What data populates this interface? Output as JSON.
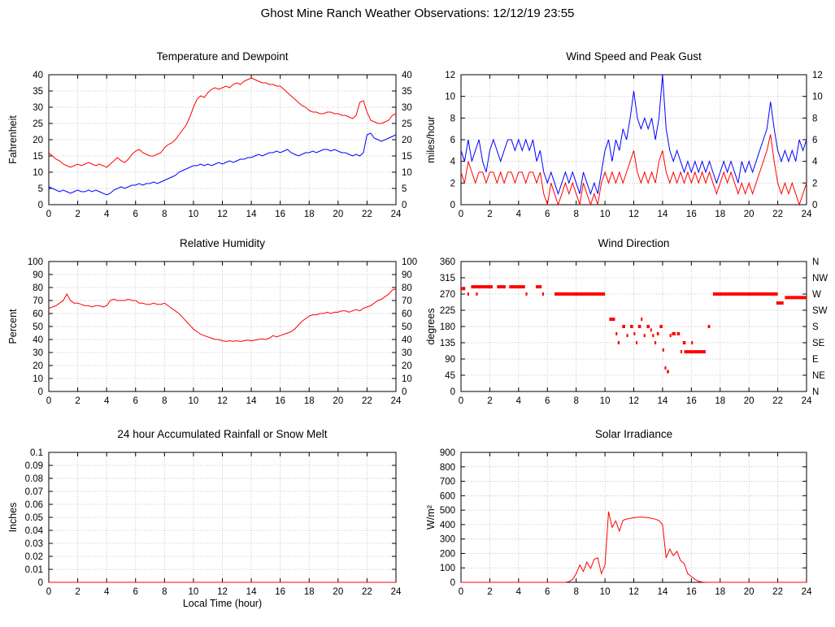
{
  "page_title": "Ghost Mine Ranch Weather Observations: 12/12/19 23:55",
  "chart_data": [
    {
      "type": "line",
      "title": "Temperature and Dewpoint",
      "ylabel": "Fahrenheit",
      "ylim": [
        0,
        40
      ],
      "ytick": 5,
      "xlim": [
        0,
        24
      ],
      "xtick": 2,
      "right_ticks": true,
      "grid": true,
      "series": [
        {
          "name": "Temperature",
          "color": "#ff0000",
          "x_step": 0.25,
          "values": [
            16,
            15,
            14,
            13.5,
            12.5,
            12,
            11.5,
            12,
            12.5,
            12,
            12.5,
            13,
            12.5,
            12,
            12.5,
            12,
            11.5,
            12.5,
            13.5,
            14.5,
            13.5,
            13,
            14,
            15.5,
            16.5,
            17,
            16,
            15.5,
            15,
            15,
            15.5,
            16,
            17.5,
            18.5,
            19,
            20,
            21.5,
            23,
            24.5,
            27,
            30,
            32.5,
            33.5,
            33,
            34.5,
            35.5,
            36,
            35.5,
            36,
            36.5,
            36,
            37,
            37.5,
            37,
            38,
            38.5,
            39,
            38.5,
            38,
            37.5,
            37.5,
            37,
            37,
            36.5,
            36.5,
            35.5,
            34.5,
            33.5,
            32.5,
            31.5,
            30.5,
            30,
            29,
            28.5,
            28.5,
            28,
            28,
            28.5,
            28.5,
            28,
            28,
            27.5,
            27.5,
            27,
            26.5,
            27.5,
            31.5,
            32,
            28.5,
            26,
            25.5,
            25,
            25,
            25.5,
            26,
            27.5,
            28
          ]
        },
        {
          "name": "Dewpoint",
          "color": "#0000ff",
          "x_step": 0.25,
          "values": [
            5.5,
            5,
            4.5,
            4,
            4.5,
            4,
            3.5,
            4,
            4.5,
            4,
            4,
            4.5,
            4,
            4.5,
            4,
            3.5,
            3,
            3.5,
            4.5,
            5,
            5.5,
            5,
            5.5,
            6,
            6,
            6.5,
            6,
            6.5,
            6.5,
            7,
            6.5,
            7,
            7.5,
            8,
            8.5,
            9,
            10,
            10.5,
            11,
            11.5,
            12,
            12,
            12.5,
            12,
            12.5,
            12,
            12.5,
            13,
            12.5,
            13,
            13.5,
            13,
            13.5,
            14,
            14,
            14.5,
            14.5,
            15,
            15.5,
            15,
            15.5,
            16,
            16,
            16.5,
            16,
            16.5,
            17,
            16,
            15.5,
            15,
            15.5,
            16,
            16,
            16.5,
            16,
            16.5,
            17,
            17,
            16.5,
            17,
            16.5,
            16,
            16,
            15.5,
            15,
            15.5,
            15,
            16,
            21.5,
            22,
            20.5,
            20,
            19.5,
            20,
            20.5,
            21,
            21.5
          ]
        }
      ]
    },
    {
      "type": "line",
      "title": "Wind Speed and Peak Gust",
      "ylabel": "miles/hour",
      "ylim": [
        0,
        12
      ],
      "ytick": 2,
      "xlim": [
        0,
        24
      ],
      "xtick": 2,
      "right_ticks": true,
      "grid": true,
      "series": [
        {
          "name": "Wind Speed",
          "color": "#ff0000",
          "x_step": 0.25,
          "values": [
            3,
            2,
            4,
            3,
            2,
            3,
            3,
            2,
            3,
            3,
            2,
            3,
            2,
            3,
            3,
            2,
            3,
            3,
            2,
            3,
            3,
            2,
            3,
            1,
            0,
            2,
            1,
            0,
            1,
            2,
            1,
            2,
            1,
            0,
            2,
            1,
            0,
            1,
            0,
            2,
            3,
            2,
            3,
            2,
            3,
            2,
            3,
            4,
            5,
            3,
            2,
            3,
            2,
            3,
            2,
            4,
            5,
            3,
            2,
            3,
            2,
            3,
            2,
            3,
            2,
            3,
            2,
            3,
            2,
            3,
            2,
            1,
            2,
            3,
            2,
            3,
            2,
            1,
            2,
            1,
            2,
            1,
            2,
            3,
            4,
            5,
            6.5,
            4,
            2,
            1,
            2,
            1,
            2,
            1,
            0,
            1,
            2
          ]
        },
        {
          "name": "Peak Gust",
          "color": "#0000ff",
          "x_step": 0.25,
          "values": [
            5,
            4,
            6,
            4,
            5,
            6,
            4,
            3,
            5,
            6,
            5,
            4,
            5,
            6,
            6,
            5,
            6,
            5,
            6,
            5,
            6,
            4,
            5,
            3,
            2,
            3,
            2,
            1,
            2,
            3,
            2,
            3,
            2,
            1,
            3,
            2,
            1,
            2,
            1,
            3,
            5,
            6,
            4,
            6,
            5,
            7,
            6,
            8,
            10.5,
            8,
            7,
            8,
            7,
            8,
            6,
            8,
            12,
            7,
            5,
            4,
            5,
            4,
            3,
            4,
            3,
            4,
            3,
            4,
            3,
            4,
            3,
            2,
            3,
            4,
            3,
            4,
            3,
            2,
            4,
            3,
            4,
            3,
            4,
            5,
            6,
            7,
            9.5,
            7,
            5,
            4,
            5,
            4,
            5,
            4,
            6,
            5,
            6
          ]
        }
      ]
    },
    {
      "type": "line",
      "title": "Relative Humidity",
      "ylabel": "Percent",
      "ylim": [
        0,
        100
      ],
      "ytick": 10,
      "xlim": [
        0,
        24
      ],
      "xtick": 2,
      "right_ticks": true,
      "grid": true,
      "series": [
        {
          "name": "Relative Humidity",
          "color": "#ff0000",
          "x_step": 0.25,
          "values": [
            64,
            65,
            66,
            68,
            70,
            75,
            70,
            68,
            68,
            67,
            66,
            66,
            65,
            66,
            66,
            65,
            66,
            70,
            71,
            70,
            70,
            70,
            71,
            70,
            70,
            68,
            68,
            67,
            67,
            68,
            67,
            67,
            68,
            66,
            64,
            62,
            60,
            57,
            54,
            51,
            48,
            46,
            44,
            43,
            42,
            41,
            40,
            40,
            39,
            38.5,
            39,
            38.5,
            39,
            38.5,
            39,
            39.5,
            39,
            39.5,
            40,
            40.5,
            40,
            41,
            43,
            42,
            43,
            44,
            45,
            46,
            48,
            51,
            54,
            56,
            58,
            59,
            59,
            60,
            60,
            61,
            60,
            61,
            61,
            62,
            62,
            61,
            62,
            63,
            62,
            64,
            65,
            66,
            68,
            70,
            71,
            73,
            75,
            78,
            79
          ]
        }
      ]
    },
    {
      "type": "scatter",
      "title": "Wind Direction",
      "ylabel": "degrees",
      "ylim": [
        0,
        360
      ],
      "ytick": 45,
      "xlim": [
        0,
        24
      ],
      "xtick": 2,
      "right_labels": [
        "N",
        "NW",
        "W",
        "SW",
        "S",
        "SE",
        "E",
        "NE",
        "N"
      ],
      "grid": true,
      "color": "#ff0000",
      "segments": [
        [
          0.0,
          0.3,
          285
        ],
        [
          0.45,
          0.55,
          270
        ],
        [
          0.7,
          2.2,
          290
        ],
        [
          1.05,
          1.15,
          270
        ],
        [
          2.5,
          3.1,
          290
        ],
        [
          3.35,
          4.45,
          290
        ],
        [
          4.5,
          4.6,
          270
        ],
        [
          5.2,
          5.6,
          290
        ],
        [
          5.65,
          5.75,
          270
        ],
        [
          6.5,
          10.0,
          270
        ],
        [
          10.3,
          10.7,
          200
        ],
        [
          10.75,
          10.85,
          160
        ],
        [
          10.9,
          11.0,
          135
        ],
        [
          11.2,
          11.4,
          180
        ],
        [
          11.5,
          11.6,
          155
        ],
        [
          11.75,
          11.95,
          180
        ],
        [
          12.0,
          12.1,
          160
        ],
        [
          12.15,
          12.25,
          135
        ],
        [
          12.3,
          12.5,
          180
        ],
        [
          12.5,
          12.6,
          200
        ],
        [
          12.7,
          12.8,
          155
        ],
        [
          12.9,
          13.1,
          180
        ],
        [
          13.15,
          13.25,
          170
        ],
        [
          13.3,
          13.4,
          155
        ],
        [
          13.45,
          13.55,
          135
        ],
        [
          13.6,
          13.75,
          160
        ],
        [
          13.8,
          14.0,
          180
        ],
        [
          14.0,
          14.1,
          115
        ],
        [
          14.15,
          14.25,
          65
        ],
        [
          14.3,
          14.45,
          55
        ],
        [
          14.5,
          14.6,
          155
        ],
        [
          14.65,
          14.9,
          160
        ],
        [
          15.0,
          15.2,
          160
        ],
        [
          15.25,
          15.35,
          110
        ],
        [
          15.4,
          15.6,
          135
        ],
        [
          15.5,
          17.0,
          110
        ],
        [
          16.0,
          16.1,
          135
        ],
        [
          17.15,
          17.3,
          180
        ],
        [
          17.5,
          22.0,
          270
        ],
        [
          21.9,
          22.4,
          245
        ],
        [
          22.5,
          24.0,
          260
        ]
      ]
    },
    {
      "type": "line",
      "title": "24 hour Accumulated Rainfall or Snow Melt",
      "ylabel": "Inches",
      "xlabel": "Local Time (hour)",
      "ylim": [
        0,
        0.1
      ],
      "ytick": 0.01,
      "xlim": [
        0,
        24
      ],
      "xtick": 2,
      "grid": true,
      "series": [
        {
          "name": "Rainfall",
          "color": "#ff0000",
          "x_step": 24,
          "values": [
            0,
            0
          ]
        }
      ]
    },
    {
      "type": "line",
      "title": "Solar Irradiance",
      "ylabel": "W/m²",
      "ylim": [
        0,
        900
      ],
      "ytick": 100,
      "xlim": [
        0,
        24
      ],
      "xtick": 2,
      "grid": true,
      "series": [
        {
          "name": "Solar Irradiance",
          "color": "#ff0000",
          "x_step": 0.25,
          "values": [
            0,
            0,
            0,
            0,
            0,
            0,
            0,
            0,
            0,
            0,
            0,
            0,
            0,
            0,
            0,
            0,
            0,
            0,
            0,
            0,
            0,
            0,
            0,
            0,
            0,
            0,
            0,
            0,
            0,
            0,
            5,
            20,
            60,
            120,
            75,
            140,
            95,
            160,
            170,
            60,
            120,
            490,
            380,
            425,
            355,
            430,
            438,
            443,
            448,
            450,
            452,
            450,
            448,
            443,
            437,
            428,
            400,
            170,
            230,
            185,
            215,
            150,
            130,
            60,
            40,
            20,
            8,
            2,
            0,
            0,
            0,
            0,
            0,
            0,
            0,
            0,
            0,
            0,
            0,
            0,
            0,
            0,
            0,
            0,
            0,
            0,
            0,
            0,
            0,
            0,
            0,
            0,
            0,
            0,
            0,
            0,
            0
          ]
        }
      ]
    }
  ]
}
